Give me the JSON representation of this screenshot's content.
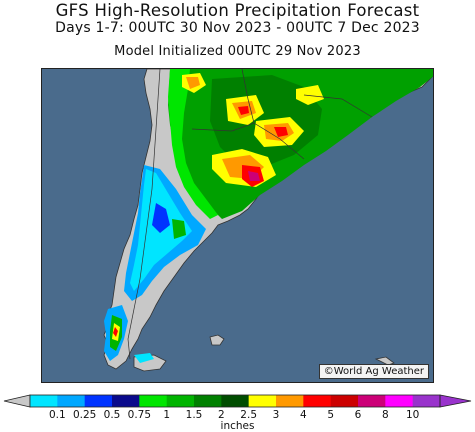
{
  "header": {
    "title": "GFS High-Resolution Precipitation Forecast",
    "period": "Days 1-7: 00UTC 30 Nov 2023 - 00UTC 7 Dec 2023",
    "init": "Model Initialized 00UTC 29 Nov 2023"
  },
  "map": {
    "region": "southern South America",
    "credit": "©World Ag Weather",
    "colors": {
      "ocean": "#4a6b8c",
      "land_dry": "#c8c8c8",
      "border": "#333333"
    }
  },
  "legend": {
    "units": "inches",
    "ticks": [
      "0.1",
      "0.25",
      "0.5",
      "0.75",
      "1",
      "1.5",
      "2",
      "2.5",
      "3",
      "4",
      "5",
      "6",
      "8",
      "10"
    ],
    "colors": [
      "#00e5ff",
      "#00a8ff",
      "#0033ff",
      "#0a0a8c",
      "#00e600",
      "#00b400",
      "#008000",
      "#004d00",
      "#ffff00",
      "#ff9900",
      "#ff0000",
      "#cc0000",
      "#cc0077",
      "#ff00ff",
      "#9933cc"
    ],
    "under_color": "#c8c8c8",
    "over_color": "#9933cc"
  }
}
